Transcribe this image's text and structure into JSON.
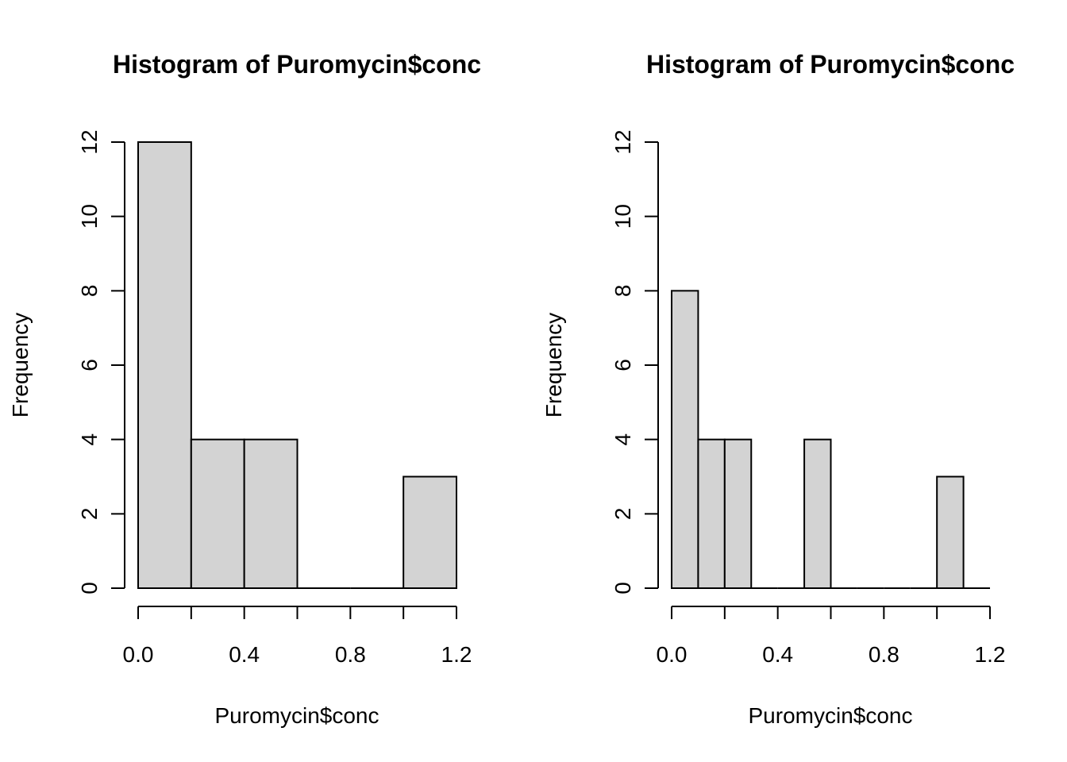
{
  "colors": {
    "background": "#ffffff",
    "bar_fill": "#d3d3d3",
    "bar_stroke": "#000000",
    "axis": "#000000"
  },
  "chart_data": [
    {
      "type": "bar",
      "subtype": "histogram",
      "title": "Histogram of Puromycin$conc",
      "xlabel": "Puromycin$conc",
      "ylabel": "Frequency",
      "bins": [
        {
          "start": 0.0,
          "end": 0.2,
          "count": 12
        },
        {
          "start": 0.2,
          "end": 0.4,
          "count": 4
        },
        {
          "start": 0.4,
          "end": 0.6,
          "count": 4
        },
        {
          "start": 0.6,
          "end": 0.8,
          "count": 0
        },
        {
          "start": 0.8,
          "end": 1.0,
          "count": 0
        },
        {
          "start": 1.0,
          "end": 1.2,
          "count": 3
        }
      ],
      "xlim": [
        0.0,
        1.2
      ],
      "ylim": [
        0,
        12
      ],
      "x_ticks": [
        0.0,
        0.2,
        0.4,
        0.6,
        0.8,
        1.0,
        1.2
      ],
      "x_tick_labels": [
        "0.0",
        "",
        "0.4",
        "",
        "0.8",
        "",
        "1.2"
      ],
      "y_ticks": [
        0,
        2,
        4,
        6,
        8,
        10,
        12
      ],
      "y_tick_labels": [
        "0",
        "2",
        "4",
        "6",
        "8",
        "10",
        "12"
      ],
      "grid": false,
      "legend": "none"
    },
    {
      "type": "bar",
      "subtype": "histogram",
      "title": "Histogram of Puromycin$conc",
      "xlabel": "Puromycin$conc",
      "ylabel": "Frequency",
      "bins": [
        {
          "start": 0.0,
          "end": 0.1,
          "count": 8
        },
        {
          "start": 0.1,
          "end": 0.2,
          "count": 4
        },
        {
          "start": 0.2,
          "end": 0.3,
          "count": 4
        },
        {
          "start": 0.3,
          "end": 0.4,
          "count": 0
        },
        {
          "start": 0.4,
          "end": 0.5,
          "count": 0
        },
        {
          "start": 0.5,
          "end": 0.6,
          "count": 4
        },
        {
          "start": 0.6,
          "end": 0.7,
          "count": 0
        },
        {
          "start": 0.7,
          "end": 0.8,
          "count": 0
        },
        {
          "start": 0.8,
          "end": 0.9,
          "count": 0
        },
        {
          "start": 0.9,
          "end": 1.0,
          "count": 0
        },
        {
          "start": 1.0,
          "end": 1.1,
          "count": 3
        },
        {
          "start": 1.1,
          "end": 1.2,
          "count": 0
        }
      ],
      "xlim": [
        0.0,
        1.2
      ],
      "ylim": [
        0,
        12
      ],
      "x_ticks": [
        0.0,
        0.2,
        0.4,
        0.6,
        0.8,
        1.0,
        1.2
      ],
      "x_tick_labels": [
        "0.0",
        "",
        "0.4",
        "",
        "0.8",
        "",
        "1.2"
      ],
      "y_ticks": [
        0,
        2,
        4,
        6,
        8,
        10,
        12
      ],
      "y_tick_labels": [
        "0",
        "2",
        "4",
        "6",
        "8",
        "10",
        "12"
      ],
      "grid": false,
      "legend": "none"
    }
  ]
}
